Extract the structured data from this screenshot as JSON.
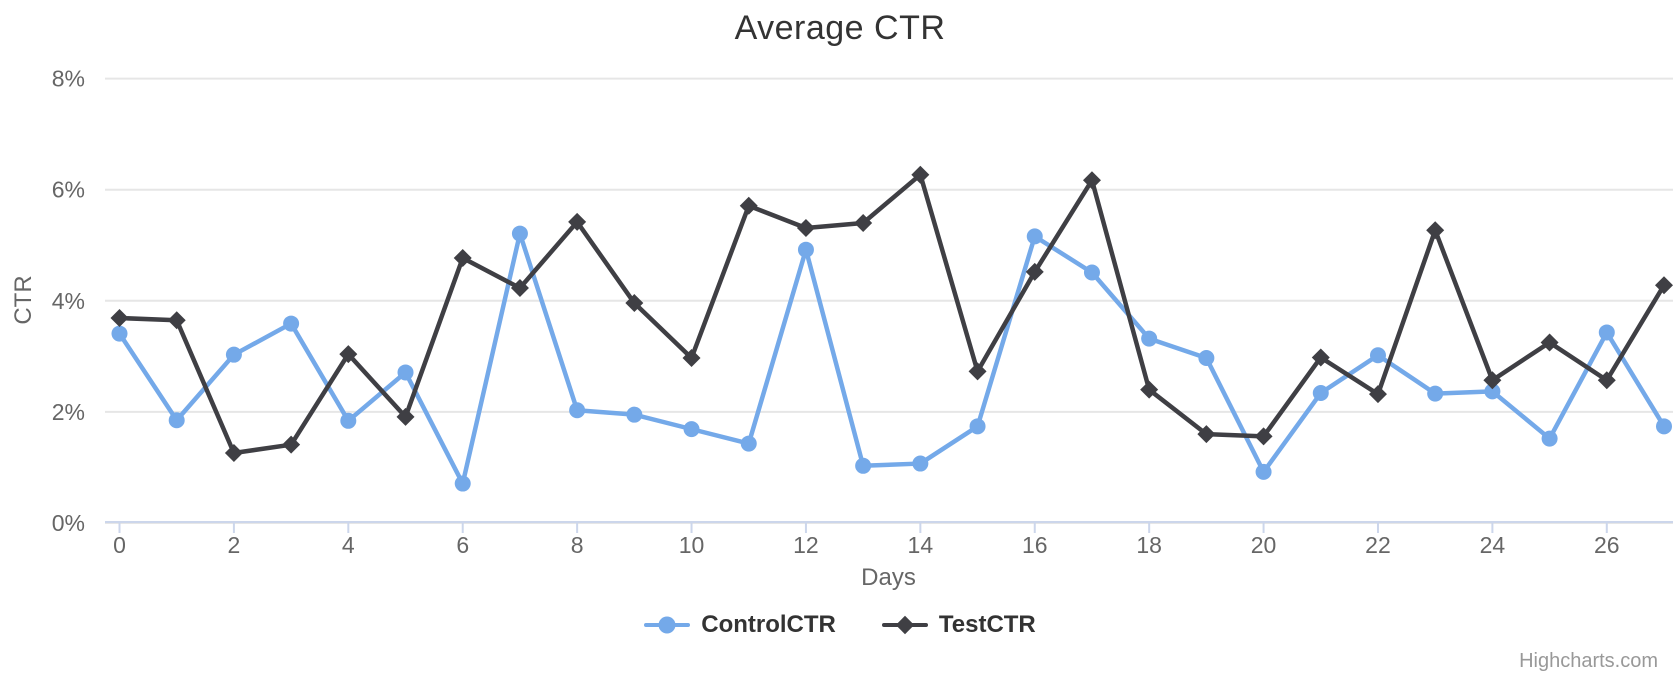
{
  "chart_data": {
    "type": "line",
    "title": "Average CTR",
    "xlabel": "Days",
    "ylabel": "CTR",
    "x": [
      0,
      1,
      2,
      3,
      4,
      5,
      6,
      7,
      8,
      9,
      10,
      11,
      12,
      13,
      14,
      15,
      16,
      17,
      18,
      19,
      20,
      21,
      22,
      23,
      24,
      25,
      26,
      27
    ],
    "xticks": [
      0,
      2,
      4,
      6,
      8,
      10,
      12,
      14,
      16,
      18,
      20,
      22,
      24,
      26
    ],
    "yticks": [
      0,
      2,
      4,
      6,
      8
    ],
    "ytick_labels": [
      "0%",
      "2%",
      "4%",
      "6%",
      "8%"
    ],
    "ylim": [
      0,
      8
    ],
    "grid": true,
    "legend_position": "bottom",
    "series": [
      {
        "name": "ControlCTR",
        "marker": "circle",
        "color": "#74a9e9",
        "values": [
          3.41,
          1.85,
          3.03,
          3.59,
          1.84,
          2.71,
          0.71,
          5.21,
          2.03,
          1.95,
          1.69,
          1.43,
          4.92,
          1.03,
          1.07,
          1.74,
          5.16,
          4.51,
          3.32,
          2.97,
          0.92,
          2.34,
          3.02,
          2.33,
          2.37,
          1.52,
          3.43,
          1.74
        ]
      },
      {
        "name": "TestCTR",
        "marker": "diamond",
        "color": "#3f3f44",
        "values": [
          3.69,
          3.65,
          1.26,
          1.41,
          3.04,
          1.91,
          4.77,
          4.23,
          5.42,
          3.96,
          2.97,
          5.71,
          5.31,
          5.4,
          6.27,
          2.73,
          4.52,
          6.17,
          2.4,
          1.6,
          1.56,
          2.98,
          2.32,
          5.27,
          2.57,
          3.25,
          2.57,
          4.28
        ]
      }
    ],
    "watermark": "Highcharts.com"
  },
  "colors": {
    "title": "#333333",
    "axis_label": "#666666",
    "grid": "#e6e6e6",
    "axis_line": "#ccd6eb",
    "legend_text": "#333333",
    "watermark": "#999999"
  }
}
